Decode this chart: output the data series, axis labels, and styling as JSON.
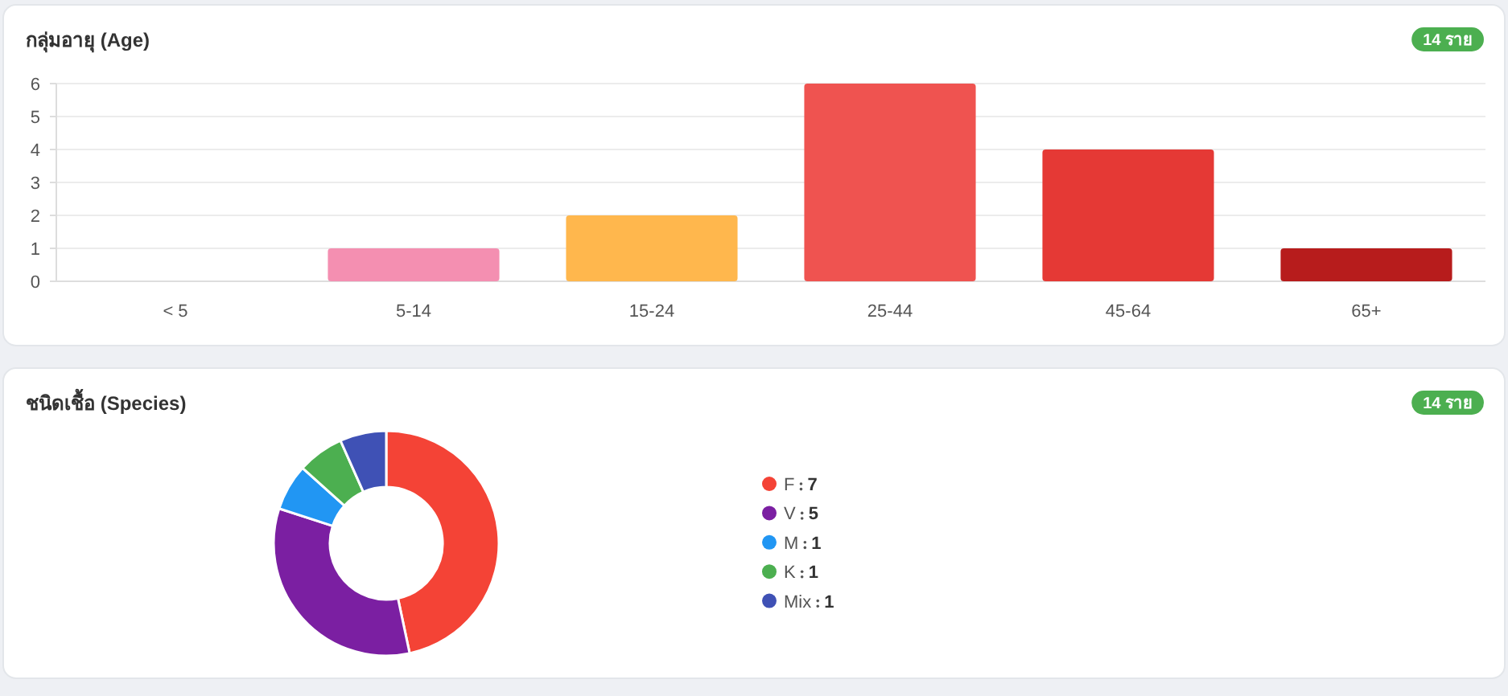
{
  "chart_data": [
    {
      "type": "bar",
      "title": "กลุ่มอายุ (Age)",
      "annotations": [
        "14 ราย"
      ],
      "categories": [
        "< 5",
        "5-14",
        "15-24",
        "25-44",
        "45-64",
        "65+"
      ],
      "values": [
        0,
        1,
        2,
        6,
        4,
        1
      ],
      "colors": [
        "#f8bbd0",
        "#f48fb1",
        "#ffb74d",
        "#ef5350",
        "#e53935",
        "#b71c1c"
      ],
      "ylim": [
        0,
        6
      ],
      "yticks": [
        0,
        1,
        2,
        3,
        4,
        5,
        6
      ],
      "grid": "y",
      "legend": false
    },
    {
      "type": "donut",
      "title": "ชนิดเชื้อ (Species)",
      "annotations": [
        "14 ราย"
      ],
      "categories": [
        "F",
        "V",
        "M",
        "K",
        "Mix"
      ],
      "values": [
        7,
        5,
        1,
        1,
        1
      ],
      "colors": [
        "#f44336",
        "#7b1fa2",
        "#2196f3",
        "#4caf50",
        "#3f51b5"
      ],
      "legend": "right",
      "data_labels": true
    }
  ]
}
